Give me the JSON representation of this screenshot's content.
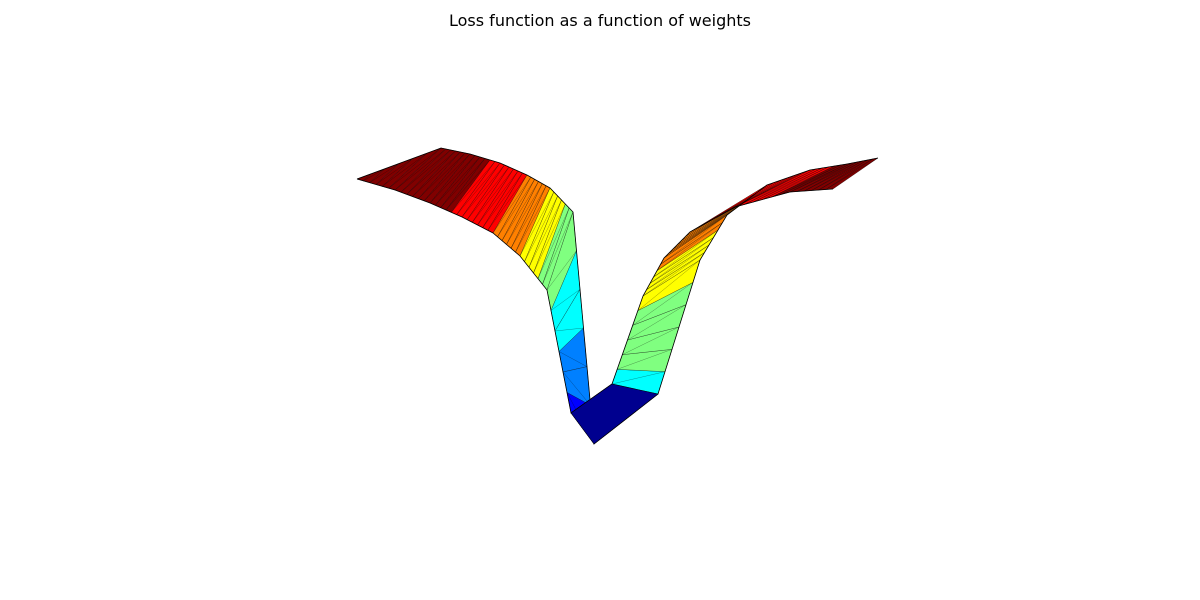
{
  "chart_data": {
    "type": "surface",
    "title": "Loss function as a function of weights",
    "xlabel": "",
    "ylabel": "",
    "zlabel": "",
    "axes_visible": false,
    "grid": false,
    "colormap": "jet",
    "colormap_colors": [
      "#00008f",
      "#0000ff",
      "#0080ff",
      "#00ffff",
      "#80ff80",
      "#ffff00",
      "#ff8000",
      "#ff0000",
      "#800000"
    ],
    "edge_color": "#000000",
    "surface_rows": [
      "back",
      "front"
    ],
    "profile": {
      "description_units": "relative loss value along weight axis",
      "w": [
        -1.0,
        -0.8,
        -0.6,
        -0.45,
        -0.3,
        -0.2,
        -0.1,
        0.0,
        0.1,
        0.2,
        0.3,
        0.45,
        0.6,
        0.8,
        1.0
      ],
      "loss": [
        0.97,
        0.99,
        0.97,
        0.92,
        0.82,
        0.7,
        0.48,
        0.1,
        0.4,
        0.6,
        0.72,
        0.82,
        0.9,
        0.95,
        0.98
      ]
    }
  }
}
